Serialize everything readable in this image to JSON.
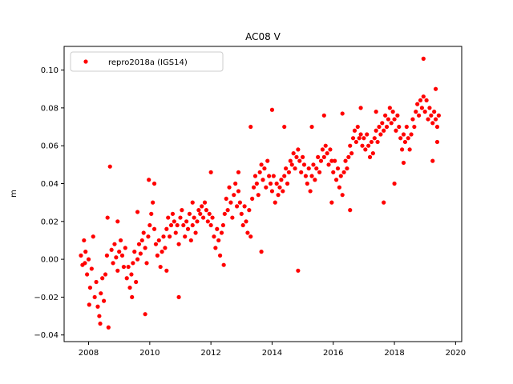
{
  "chart_data": {
    "type": "scatter",
    "title": "AC08 V",
    "xlabel": "",
    "ylabel": "m",
    "xlim": [
      2007.2,
      2020.2
    ],
    "ylim": [
      -0.0435,
      0.1125
    ],
    "xticks": [
      2008,
      2010,
      2012,
      2014,
      2016,
      2018,
      2020
    ],
    "xtick_labels": [
      "2008",
      "2010",
      "2012",
      "2014",
      "2016",
      "2018",
      "2020"
    ],
    "yticks": [
      -0.04,
      -0.02,
      0.0,
      0.02,
      0.04,
      0.06,
      0.08,
      0.1
    ],
    "ytick_labels": [
      "−0.04",
      "−0.02",
      "0.00",
      "0.02",
      "0.04",
      "0.06",
      "0.08",
      "0.10"
    ],
    "grid": false,
    "legend": {
      "position": "top-left",
      "entries": [
        "repro2018a (IGS14)"
      ]
    },
    "series": [
      {
        "name": "repro2018a (IGS14)",
        "color": "#ff0000",
        "marker": "circle",
        "points": [
          [
            2007.75,
            0.002
          ],
          [
            2007.8,
            -0.003
          ],
          [
            2007.85,
            0.01
          ],
          [
            2007.9,
            0.004
          ],
          [
            2007.95,
            -0.008
          ],
          [
            2008.0,
            0.0
          ],
          [
            2008.05,
            -0.015
          ],
          [
            2008.1,
            -0.005
          ],
          [
            2008.15,
            0.012
          ],
          [
            2008.2,
            -0.02
          ],
          [
            2008.25,
            -0.012
          ],
          [
            2008.3,
            -0.025
          ],
          [
            2008.35,
            -0.03
          ],
          [
            2008.4,
            -0.018
          ],
          [
            2008.45,
            -0.01
          ],
          [
            2008.5,
            -0.022
          ],
          [
            2008.55,
            -0.008
          ],
          [
            2008.6,
            0.002
          ],
          [
            2008.65,
            -0.036
          ],
          [
            2008.7,
            0.049
          ],
          [
            2008.75,
            0.005
          ],
          [
            2008.8,
            -0.002
          ],
          [
            2008.85,
            0.008
          ],
          [
            2008.9,
            0.001
          ],
          [
            2008.95,
            -0.006
          ],
          [
            2009.0,
            0.004
          ],
          [
            2009.05,
            0.01
          ],
          [
            2009.1,
            0.002
          ],
          [
            2009.15,
            -0.004
          ],
          [
            2009.2,
            0.006
          ],
          [
            2009.25,
            -0.01
          ],
          [
            2009.3,
            -0.004
          ],
          [
            2009.35,
            -0.015
          ],
          [
            2009.4,
            -0.008
          ],
          [
            2009.45,
            -0.002
          ],
          [
            2009.5,
            0.004
          ],
          [
            2009.55,
            -0.012
          ],
          [
            2009.6,
            0.0
          ],
          [
            2009.65,
            0.008
          ],
          [
            2009.7,
            0.003
          ],
          [
            2009.75,
            0.01
          ],
          [
            2009.8,
            0.014
          ],
          [
            2009.85,
            0.006
          ],
          [
            2009.9,
            -0.002
          ],
          [
            2009.95,
            0.012
          ],
          [
            2010.0,
            0.018
          ],
          [
            2010.05,
            0.024
          ],
          [
            2010.1,
            0.03
          ],
          [
            2010.15,
            0.016
          ],
          [
            2010.2,
            0.008
          ],
          [
            2010.25,
            0.002
          ],
          [
            2010.3,
            0.01
          ],
          [
            2010.35,
            -0.004
          ],
          [
            2010.4,
            0.004
          ],
          [
            2010.45,
            0.012
          ],
          [
            2010.5,
            0.006
          ],
          [
            2010.55,
            0.016
          ],
          [
            2010.6,
            0.022
          ],
          [
            2010.65,
            0.012
          ],
          [
            2010.7,
            0.018
          ],
          [
            2010.75,
            0.024
          ],
          [
            2010.8,
            0.02
          ],
          [
            2010.85,
            0.014
          ],
          [
            2010.9,
            0.018
          ],
          [
            2010.95,
            0.008
          ],
          [
            2011.0,
            0.022
          ],
          [
            2011.05,
            0.026
          ],
          [
            2011.1,
            0.018
          ],
          [
            2011.15,
            0.012
          ],
          [
            2011.2,
            0.02
          ],
          [
            2011.25,
            0.016
          ],
          [
            2011.3,
            0.024
          ],
          [
            2011.35,
            0.01
          ],
          [
            2011.4,
            0.018
          ],
          [
            2011.45,
            0.022
          ],
          [
            2011.5,
            0.014
          ],
          [
            2011.55,
            0.02
          ],
          [
            2011.6,
            0.026
          ],
          [
            2011.65,
            0.024
          ],
          [
            2011.7,
            0.028
          ],
          [
            2011.75,
            0.022
          ],
          [
            2011.8,
            0.03
          ],
          [
            2011.85,
            0.026
          ],
          [
            2011.9,
            0.02
          ],
          [
            2011.95,
            0.024
          ],
          [
            2012.0,
            0.018
          ],
          [
            2012.05,
            0.022
          ],
          [
            2012.1,
            0.012
          ],
          [
            2012.15,
            0.006
          ],
          [
            2012.2,
            0.016
          ],
          [
            2012.25,
            0.01
          ],
          [
            2012.3,
            0.002
          ],
          [
            2012.35,
            0.014
          ],
          [
            2012.4,
            0.018
          ],
          [
            2012.45,
            0.024
          ],
          [
            2012.5,
            0.032
          ],
          [
            2012.55,
            0.026
          ],
          [
            2012.6,
            0.038
          ],
          [
            2012.65,
            0.03
          ],
          [
            2012.7,
            0.022
          ],
          [
            2012.75,
            0.034
          ],
          [
            2012.8,
            0.04
          ],
          [
            2012.85,
            0.028
          ],
          [
            2012.9,
            0.036
          ],
          [
            2012.95,
            0.03
          ],
          [
            2013.0,
            0.024
          ],
          [
            2013.05,
            0.018
          ],
          [
            2013.1,
            0.028
          ],
          [
            2013.15,
            0.02
          ],
          [
            2013.2,
            0.014
          ],
          [
            2013.25,
            0.026
          ],
          [
            2013.3,
            0.012
          ],
          [
            2013.35,
            0.032
          ],
          [
            2013.4,
            0.038
          ],
          [
            2013.45,
            0.044
          ],
          [
            2013.5,
            0.04
          ],
          [
            2013.55,
            0.034
          ],
          [
            2013.6,
            0.046
          ],
          [
            2013.65,
            0.05
          ],
          [
            2013.7,
            0.042
          ],
          [
            2013.75,
            0.048
          ],
          [
            2013.8,
            0.038
          ],
          [
            2013.85,
            0.052
          ],
          [
            2013.9,
            0.044
          ],
          [
            2013.95,
            0.04
          ],
          [
            2014.0,
            0.036
          ],
          [
            2014.05,
            0.044
          ],
          [
            2014.1,
            0.03
          ],
          [
            2014.15,
            0.04
          ],
          [
            2014.2,
            0.034
          ],
          [
            2014.25,
            0.038
          ],
          [
            2014.3,
            0.042
          ],
          [
            2014.35,
            0.036
          ],
          [
            2014.4,
            0.044
          ],
          [
            2014.45,
            0.048
          ],
          [
            2014.5,
            0.04
          ],
          [
            2014.55,
            0.046
          ],
          [
            2014.6,
            0.052
          ],
          [
            2014.65,
            0.05
          ],
          [
            2014.7,
            0.056
          ],
          [
            2014.75,
            0.048
          ],
          [
            2014.8,
            0.054
          ],
          [
            2014.85,
            0.058
          ],
          [
            2014.9,
            0.052
          ],
          [
            2014.95,
            0.046
          ],
          [
            2015.0,
            0.054
          ],
          [
            2015.05,
            0.05
          ],
          [
            2015.1,
            0.044
          ],
          [
            2015.15,
            0.04
          ],
          [
            2015.2,
            0.048
          ],
          [
            2015.25,
            0.036
          ],
          [
            2015.3,
            0.044
          ],
          [
            2015.35,
            0.05
          ],
          [
            2015.4,
            0.042
          ],
          [
            2015.45,
            0.048
          ],
          [
            2015.5,
            0.054
          ],
          [
            2015.55,
            0.046
          ],
          [
            2015.6,
            0.052
          ],
          [
            2015.65,
            0.058
          ],
          [
            2015.7,
            0.054
          ],
          [
            2015.75,
            0.06
          ],
          [
            2015.8,
            0.056
          ],
          [
            2015.85,
            0.05
          ],
          [
            2015.9,
            0.058
          ],
          [
            2015.95,
            0.052
          ],
          [
            2016.0,
            0.046
          ],
          [
            2016.05,
            0.052
          ],
          [
            2016.1,
            0.042
          ],
          [
            2016.15,
            0.048
          ],
          [
            2016.2,
            0.038
          ],
          [
            2016.25,
            0.044
          ],
          [
            2016.3,
            0.034
          ],
          [
            2016.35,
            0.046
          ],
          [
            2016.4,
            0.052
          ],
          [
            2016.45,
            0.048
          ],
          [
            2016.5,
            0.054
          ],
          [
            2016.55,
            0.06
          ],
          [
            2016.6,
            0.056
          ],
          [
            2016.65,
            0.064
          ],
          [
            2016.7,
            0.068
          ],
          [
            2016.75,
            0.062
          ],
          [
            2016.8,
            0.07
          ],
          [
            2016.85,
            0.064
          ],
          [
            2016.9,
            0.066
          ],
          [
            2016.95,
            0.06
          ],
          [
            2017.0,
            0.064
          ],
          [
            2017.05,
            0.058
          ],
          [
            2017.1,
            0.066
          ],
          [
            2017.15,
            0.06
          ],
          [
            2017.2,
            0.054
          ],
          [
            2017.25,
            0.062
          ],
          [
            2017.3,
            0.056
          ],
          [
            2017.35,
            0.064
          ],
          [
            2017.4,
            0.068
          ],
          [
            2017.45,
            0.062
          ],
          [
            2017.5,
            0.07
          ],
          [
            2017.55,
            0.066
          ],
          [
            2017.6,
            0.072
          ],
          [
            2017.65,
            0.068
          ],
          [
            2017.7,
            0.076
          ],
          [
            2017.75,
            0.07
          ],
          [
            2017.8,
            0.074
          ],
          [
            2017.85,
            0.08
          ],
          [
            2017.9,
            0.072
          ],
          [
            2017.95,
            0.078
          ],
          [
            2018.0,
            0.074
          ],
          [
            2018.05,
            0.068
          ],
          [
            2018.1,
            0.076
          ],
          [
            2018.15,
            0.07
          ],
          [
            2018.2,
            0.064
          ],
          [
            2018.25,
            0.058
          ],
          [
            2018.3,
            0.066
          ],
          [
            2018.35,
            0.062
          ],
          [
            2018.4,
            0.07
          ],
          [
            2018.45,
            0.064
          ],
          [
            2018.5,
            0.058
          ],
          [
            2018.55,
            0.066
          ],
          [
            2018.6,
            0.074
          ],
          [
            2018.65,
            0.07
          ],
          [
            2018.7,
            0.078
          ],
          [
            2018.75,
            0.082
          ],
          [
            2018.8,
            0.076
          ],
          [
            2018.85,
            0.084
          ],
          [
            2018.9,
            0.08
          ],
          [
            2018.95,
            0.086
          ],
          [
            2019.0,
            0.078
          ],
          [
            2019.05,
            0.084
          ],
          [
            2019.1,
            0.074
          ],
          [
            2019.15,
            0.08
          ],
          [
            2019.2,
            0.076
          ],
          [
            2019.25,
            0.072
          ],
          [
            2019.3,
            0.078
          ],
          [
            2019.35,
            0.074
          ],
          [
            2019.4,
            0.07
          ],
          [
            2019.45,
            0.076
          ],
          [
            2007.88,
            -0.002
          ],
          [
            2008.02,
            -0.024
          ],
          [
            2008.38,
            -0.034
          ],
          [
            2008.62,
            0.022
          ],
          [
            2008.95,
            0.02
          ],
          [
            2009.42,
            -0.02
          ],
          [
            2009.6,
            0.025
          ],
          [
            2009.85,
            -0.029
          ],
          [
            2009.97,
            0.042
          ],
          [
            2010.15,
            0.04
          ],
          [
            2010.55,
            -0.006
          ],
          [
            2010.95,
            -0.02
          ],
          [
            2011.4,
            0.03
          ],
          [
            2012.0,
            0.046
          ],
          [
            2012.42,
            -0.003
          ],
          [
            2012.9,
            0.046
          ],
          [
            2013.3,
            0.07
          ],
          [
            2013.65,
            0.004
          ],
          [
            2014.0,
            0.079
          ],
          [
            2014.4,
            0.07
          ],
          [
            2014.85,
            -0.006
          ],
          [
            2015.3,
            0.07
          ],
          [
            2015.7,
            0.076
          ],
          [
            2015.95,
            0.03
          ],
          [
            2016.3,
            0.077
          ],
          [
            2016.55,
            0.026
          ],
          [
            2016.9,
            0.08
          ],
          [
            2017.4,
            0.078
          ],
          [
            2017.65,
            0.03
          ],
          [
            2018.0,
            0.04
          ],
          [
            2018.3,
            0.051
          ],
          [
            2018.95,
            0.106
          ],
          [
            2019.25,
            0.052
          ],
          [
            2019.4,
            0.062
          ],
          [
            2019.35,
            0.09
          ]
        ]
      }
    ]
  }
}
